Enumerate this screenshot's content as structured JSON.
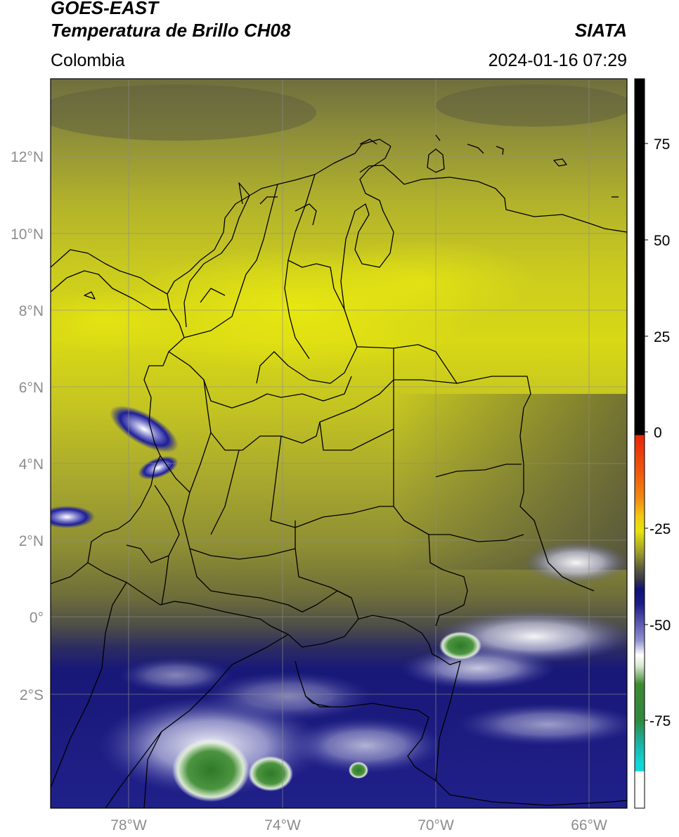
{
  "header": {
    "satellite": "GOES-EAST",
    "product": "Temperatura de Brillo CH08",
    "region": "Colombia",
    "organization": "SIATA",
    "datetime": "2024-01-16 07:29"
  },
  "map": {
    "lon_range": [
      -80,
      -65
    ],
    "lat_range": [
      -5,
      14
    ],
    "lat_ticks": [
      "12°N",
      "10°N",
      "8°N",
      "6°N",
      "4°N",
      "2°N",
      "0°",
      "2°S"
    ],
    "lon_ticks": [
      "78°W",
      "74°W",
      "70°W",
      "66°W"
    ],
    "grid": true
  },
  "colorbar": {
    "ticks": [
      "75",
      "50",
      "25",
      "0",
      "-25",
      "-50",
      "-75"
    ],
    "range": [
      -97,
      90
    ],
    "colors": {
      "positive": "#000000",
      "red": "#e8260c",
      "orange": "#f08a10",
      "yellow": "#e6e40c",
      "olive": "#9a9a2c",
      "dark": "#3c3c44",
      "navy": "#101078",
      "white": "#ffffff",
      "green": "#3e8a30",
      "cyan": "#10d8d8"
    }
  }
}
